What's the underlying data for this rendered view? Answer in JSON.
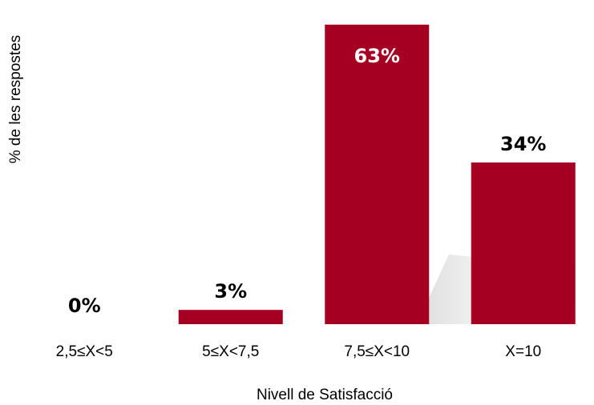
{
  "chart_data": {
    "type": "bar",
    "x_label": "Nivell de Satisfacció",
    "y_label": "% de les respostes",
    "categories": [
      "2,5≤X<5",
      "5≤X<7,5",
      "7,5≤X<10",
      "X=10"
    ],
    "values": [
      0,
      3,
      63,
      34
    ],
    "value_labels": [
      "0%",
      "3%",
      "63%",
      "34%"
    ],
    "color": "#a50021"
  }
}
